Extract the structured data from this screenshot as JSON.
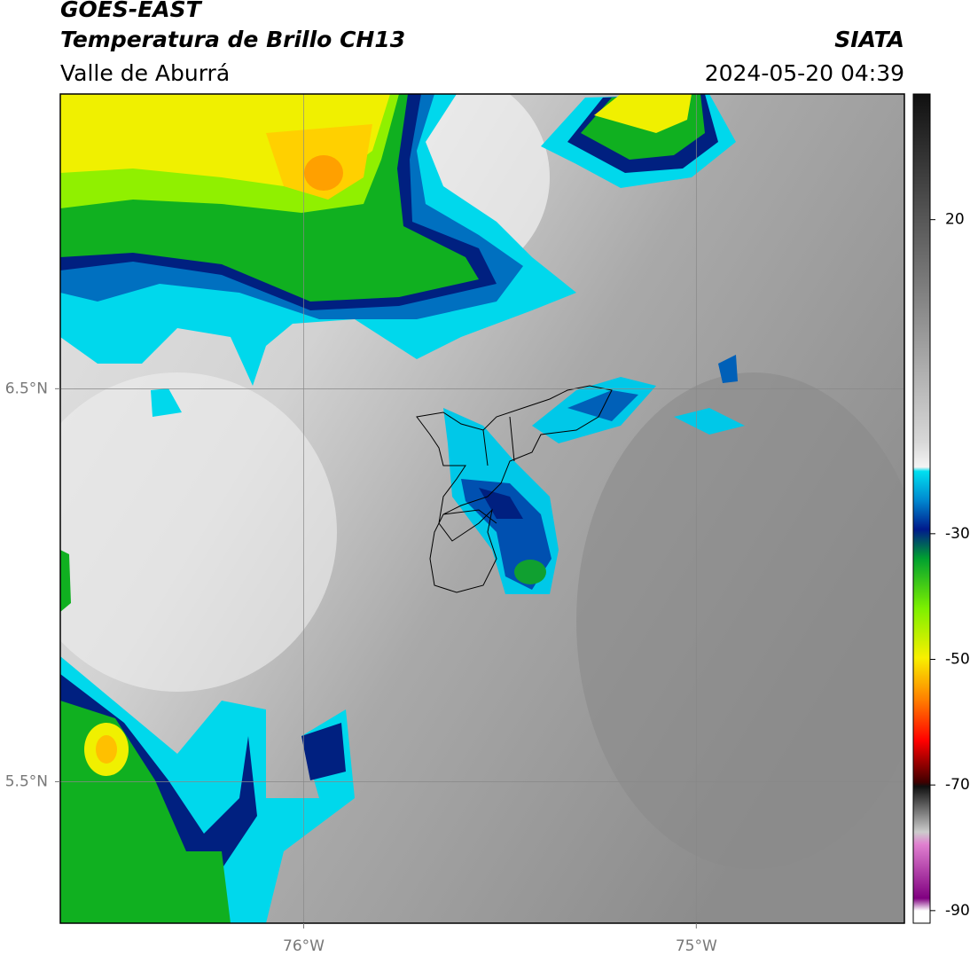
{
  "header": {
    "title": "GOES-EAST",
    "subtitle": "Temperatura de Brillo CH13",
    "region": "Valle de Aburrá",
    "source": "SIATA",
    "timestamp": "2024-05-20 04:39"
  },
  "map": {
    "xlim": [
      -76.62,
      -74.47
    ],
    "ylim": [
      5.14,
      7.25
    ],
    "xticks": [
      {
        "value": -76,
        "label": "76°W"
      },
      {
        "value": -75,
        "label": "75°W"
      }
    ],
    "yticks": [
      {
        "value": 6.5,
        "label": "6.5°N"
      },
      {
        "value": 5.5,
        "label": "5.5°N"
      }
    ],
    "grid": true
  },
  "colorbar": {
    "lim": [
      -92,
      40
    ],
    "ticks": [
      20,
      -30,
      -50,
      -70,
      -90
    ]
  }
}
